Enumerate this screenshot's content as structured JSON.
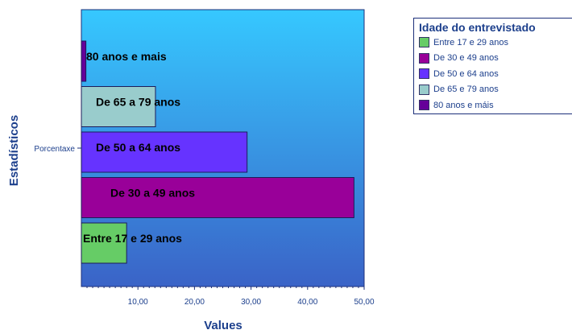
{
  "chart_data": {
    "type": "bar",
    "orientation": "horizontal",
    "xlabel": "Values",
    "ylabel": "Estadísticos",
    "category_axis_label": "Porcentaxe",
    "xlim": [
      0,
      50
    ],
    "x_ticks": [
      "10,00",
      "20,00",
      "30,00",
      "40,00",
      "50,00"
    ],
    "x_tick_values": [
      10,
      20,
      30,
      40,
      50
    ],
    "legend": {
      "title": "Idade do entrevistado",
      "placement": "right"
    },
    "series": [
      {
        "name": "Entre 17 e 29 anos",
        "label": "Entre 17 e 29 anos",
        "value": 8.0,
        "color": "#66cc66"
      },
      {
        "name": "De 30 e 49 anos",
        "label": "De 30 a 49 anos",
        "value": 48.2,
        "color": "#990099"
      },
      {
        "name": "De 50 e 64 anos",
        "label": "De 50 a 64 anos",
        "value": 29.3,
        "color": "#6633ff"
      },
      {
        "name": "De 65 e 79 anos",
        "label": "De 65 a 79 anos",
        "value": 13.1,
        "color": "#99cccc"
      },
      {
        "name": "80 anos e máis",
        "label": "80 anos e mais",
        "value": 0.8,
        "color": "#660099"
      }
    ]
  }
}
